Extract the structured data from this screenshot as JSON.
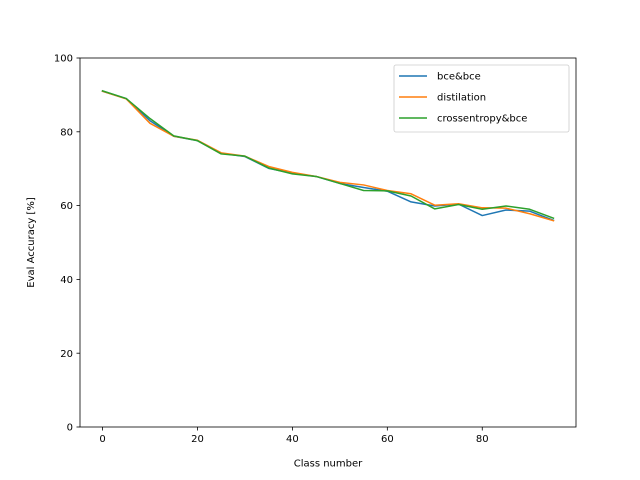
{
  "chart_data": {
    "type": "line",
    "title": "",
    "xlabel": "Class number",
    "ylabel": "Eval Accuracy [%]",
    "xlim": [
      -4.75,
      99.75
    ],
    "ylim": [
      0,
      100
    ],
    "xticks": [
      0,
      20,
      40,
      60,
      80
    ],
    "yticks": [
      0,
      20,
      40,
      60,
      80,
      100
    ],
    "grid": false,
    "legend": "top-right",
    "x": [
      0,
      5,
      10,
      15,
      20,
      25,
      30,
      35,
      40,
      45,
      50,
      55,
      60,
      65,
      70,
      75,
      80,
      85,
      90,
      95
    ],
    "series": [
      {
        "name": "bce&bce",
        "color": "#1f77b4",
        "values": [
          91.0,
          89.0,
          83.0,
          78.8,
          77.6,
          74.2,
          73.3,
          70.1,
          68.8,
          67.9,
          66.0,
          64.9,
          63.9,
          61.0,
          59.9,
          60.4,
          57.3,
          58.8,
          58.5,
          56.0
        ]
      },
      {
        "name": "distilation",
        "color": "#ff7f0e",
        "values": [
          91.0,
          88.9,
          82.3,
          78.8,
          77.7,
          74.3,
          73.4,
          70.6,
          69.0,
          67.9,
          66.3,
          65.6,
          64.1,
          63.2,
          60.1,
          60.5,
          59.4,
          59.3,
          57.8,
          55.9
        ]
      },
      {
        "name": "crossentropy&bce",
        "color": "#2ca02c",
        "values": [
          91.1,
          89.0,
          83.6,
          78.9,
          77.6,
          74.0,
          73.4,
          70.2,
          68.6,
          67.9,
          66.0,
          64.1,
          64.0,
          62.6,
          59.1,
          60.3,
          59.0,
          59.9,
          59.0,
          56.6
        ]
      }
    ]
  }
}
